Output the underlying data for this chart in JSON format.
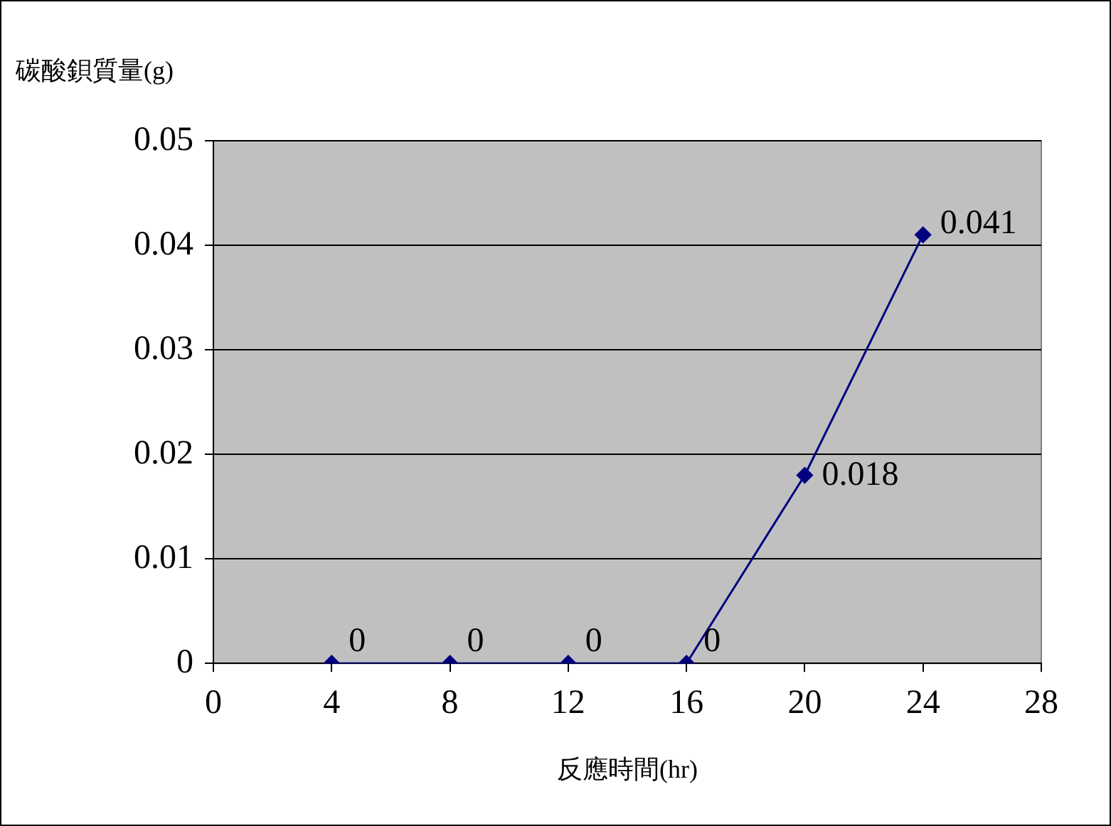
{
  "chart_data": {
    "type": "line",
    "xlabel": "反應時間(hr)",
    "ylabel": "碳酸鋇質量(g)",
    "x": [
      4,
      8,
      12,
      16,
      20,
      24
    ],
    "series": [
      {
        "color": "#000080",
        "values": [
          0,
          0,
          0,
          0,
          0.018,
          0.041
        ]
      }
    ],
    "xlim": [
      0,
      28
    ],
    "xticks": [
      0,
      4,
      8,
      12,
      16,
      20,
      24,
      28
    ],
    "ylim": [
      0,
      0.05
    ],
    "yticks": [
      0,
      0.01,
      0.02,
      0.03,
      0.04,
      0.05
    ],
    "grid": "y",
    "legend": false,
    "marker": "diamond",
    "line_style": "solid",
    "data_labels": true
  }
}
